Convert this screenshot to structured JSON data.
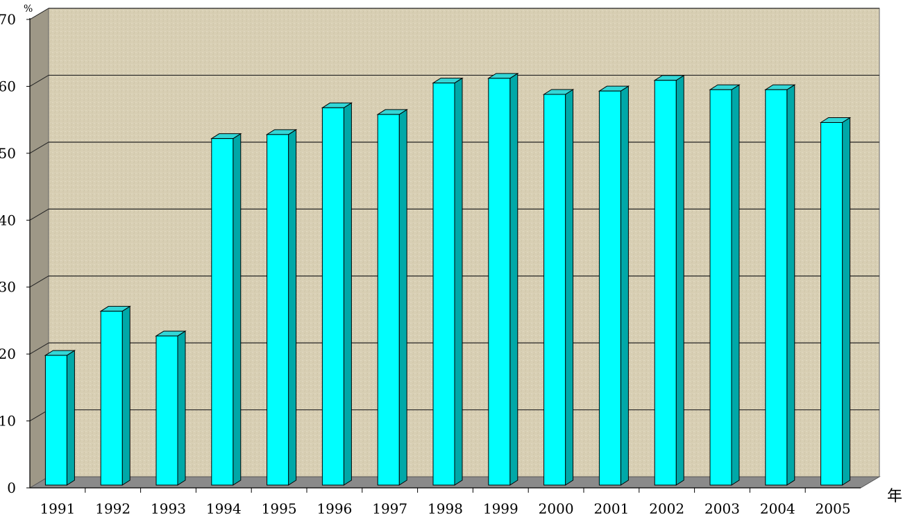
{
  "chart_data": {
    "type": "bar",
    "categories": [
      "1991",
      "1992",
      "1993",
      "1994",
      "1995",
      "1996",
      "1997",
      "1998",
      "1999",
      "2000",
      "2001",
      "2002",
      "2003",
      "2004",
      "2005"
    ],
    "values": [
      19.8,
      26.4,
      22.7,
      52.2,
      52.8,
      56.8,
      55.8,
      60.5,
      61.2,
      58.8,
      59.3,
      60.9,
      59.5,
      59.5,
      54.6
    ],
    "title": "",
    "xlabel": "年",
    "ylabel": "%",
    "ylim": [
      0,
      70
    ],
    "yticks": [
      0,
      10,
      20,
      30,
      40,
      50,
      60,
      70
    ],
    "grid": true,
    "legend": "none",
    "style": "3d-column",
    "colors": {
      "bar_front": "#00FFFF",
      "bar_side": "#00A8A8",
      "bar_top": "#33D6D6",
      "wall": "#D8CFB4",
      "wall_side": "#9E9887",
      "floor": "#8A8A8A"
    }
  }
}
